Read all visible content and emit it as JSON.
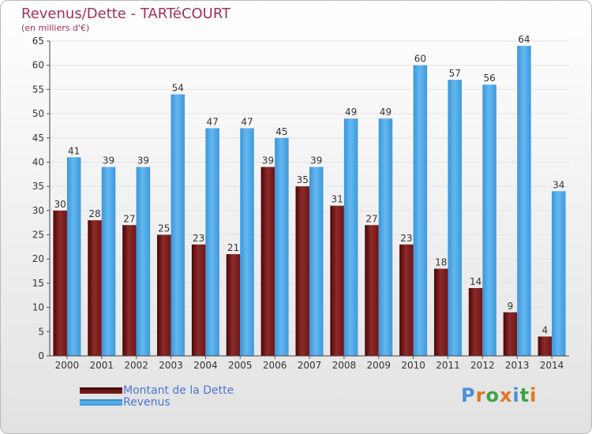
{
  "chart_data": {
    "type": "bar",
    "title": "Revenus/Dette - TARTéCOURT",
    "subtitle": "(en milliers d'€)",
    "categories": [
      "2000",
      "2001",
      "2002",
      "2003",
      "2004",
      "2005",
      "2006",
      "2007",
      "2008",
      "2009",
      "2010",
      "2011",
      "2012",
      "2013",
      "2014"
    ],
    "series": [
      {
        "name": "Montant de la Dette",
        "values": [
          30,
          28,
          27,
          25,
          23,
          21,
          39,
          35,
          31,
          27,
          23,
          18,
          14,
          9,
          4
        ]
      },
      {
        "name": "Revenus",
        "values": [
          41,
          39,
          39,
          54,
          47,
          47,
          45,
          39,
          49,
          49,
          60,
          57,
          56,
          64,
          34
        ]
      }
    ],
    "ylim": [
      0,
      65
    ],
    "yticks": [
      0,
      5,
      10,
      15,
      20,
      25,
      30,
      35,
      40,
      45,
      50,
      55,
      60,
      65
    ],
    "grid": true,
    "legend": "bottom-left"
  },
  "colors": {
    "title": "#a23157",
    "dette": "#7a1e1e",
    "revenus": "#4aa3e6",
    "legend_text": "#4b74d8"
  },
  "logo": {
    "text": "Proxiti"
  }
}
